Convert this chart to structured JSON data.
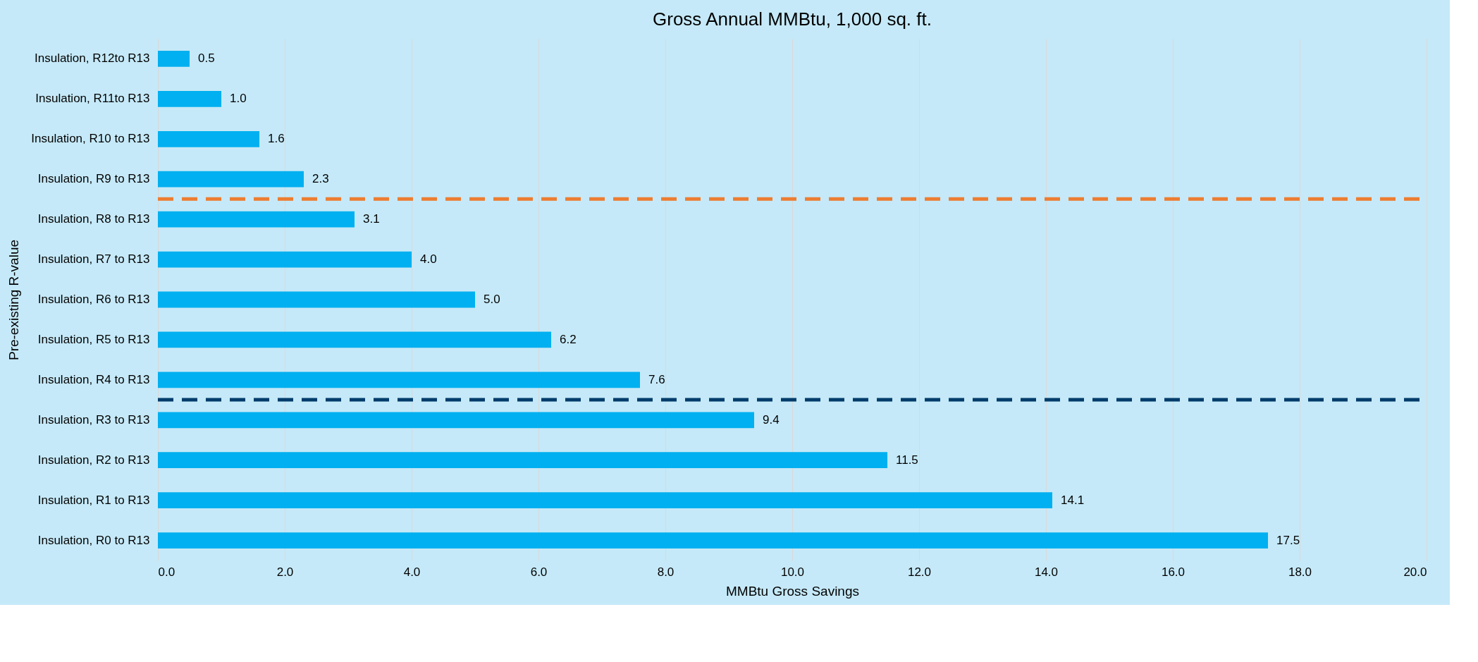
{
  "chart_data": {
    "type": "bar",
    "orientation": "horizontal",
    "title": "Gross Annual MMBtu, 1,000 sq. ft.",
    "xlabel": "MMBtu Gross Savings",
    "ylabel": "Pre-existing R-value",
    "categories": [
      "Insulation,  R12to R13",
      "Insulation,  R11to R13",
      "Insulation,  R10 to R13",
      "Insulation,  R9 to R13",
      "Insulation,  R8 to R13",
      "Insulation,  R7 to R13",
      "Insulation,  R6 to R13",
      "Insulation,  R5 to R13",
      "Insulation,  R4 to R13",
      "Insulation,  R3 to R13",
      "Insulation,  R2 to R13",
      "Insulation,  R1 to R13",
      "Insulation,  R0 to R13"
    ],
    "values": [
      0.5,
      1.0,
      1.6,
      2.3,
      3.1,
      4.0,
      5.0,
      6.2,
      7.6,
      9.4,
      11.5,
      14.1,
      17.5
    ],
    "value_labels": [
      "0.5",
      "1.0",
      "1.6",
      "2.3",
      "3.1",
      "4.0",
      "5.0",
      "6.2",
      "7.6",
      "9.4",
      "11.5",
      "14.1",
      "17.5"
    ],
    "color": "#00b0f0",
    "grid": "x",
    "xlim": [
      0,
      20
    ],
    "xticks": [
      {
        "value": 0,
        "label": "0.0"
      },
      {
        "value": 2,
        "label": "2.0"
      },
      {
        "value": 4,
        "label": "4.0"
      },
      {
        "value": 6,
        "label": "6.0"
      },
      {
        "value": 8,
        "label": "8.0"
      },
      {
        "value": 10,
        "label": "10.0"
      },
      {
        "value": 12,
        "label": "12.0"
      },
      {
        "value": 14,
        "label": "14.0"
      },
      {
        "value": 16,
        "label": "16.0"
      },
      {
        "value": 18,
        "label": "18.0"
      },
      {
        "value": 20,
        "label": "20.0"
      }
    ],
    "ref_lines": [
      {
        "axis": "y",
        "value": "Insulation,  R9 to R13",
        "color": "#ed7d31",
        "line_style": "dashed"
      },
      {
        "axis": "y",
        "value": "Insulation,  R4 to R13",
        "color": "#003d6b",
        "line_style": "dashed"
      }
    ]
  }
}
